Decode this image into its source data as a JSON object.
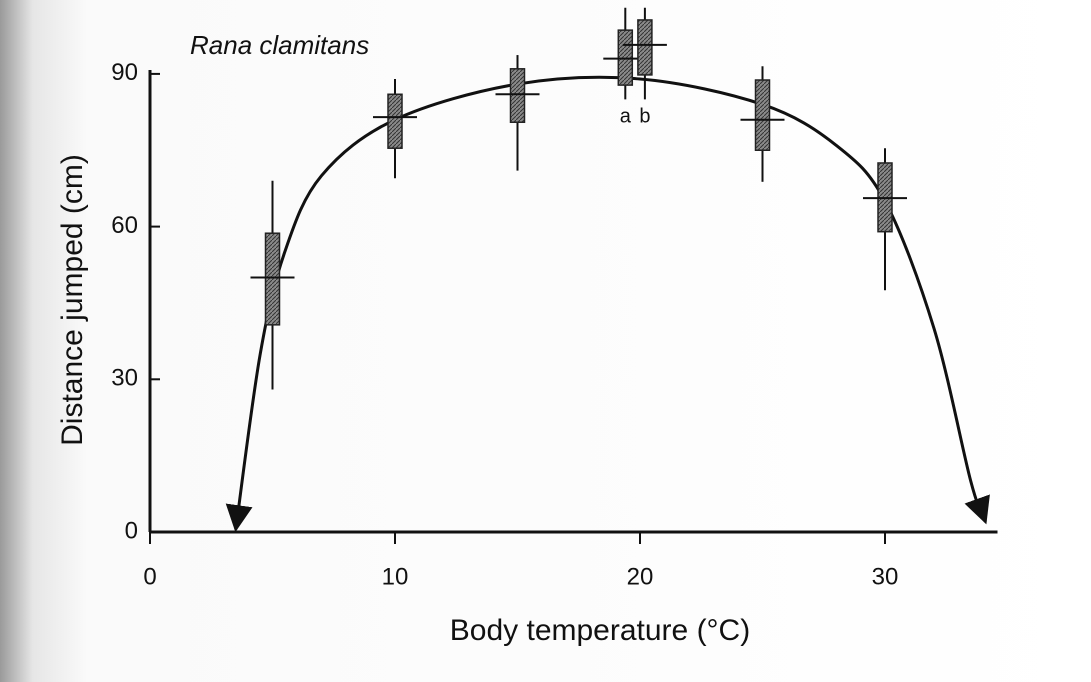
{
  "chart_data": {
    "type": "box",
    "title": "Rana clamitans",
    "xlabel": "Body temperature (°C)",
    "ylabel": "Distance jumped (cm)",
    "xlim": [
      0,
      35
    ],
    "ylim": [
      0,
      104
    ],
    "xticks": [
      0,
      10,
      20,
      30
    ],
    "yticks": [
      0,
      30,
      60,
      90
    ],
    "color": "#8a8a8a",
    "x": [
      5,
      10,
      15,
      19.4,
      20.2,
      25,
      30
    ],
    "mean": [
      50,
      81.5,
      86,
      93,
      95.7,
      81,
      65.6
    ],
    "box_low": [
      40.7,
      75.4,
      80.5,
      87.8,
      89.8,
      75,
      59
    ],
    "box_high": [
      58.7,
      86,
      91,
      98.6,
      100.6,
      88.8,
      72.5
    ],
    "whisker_low": [
      28,
      69.5,
      71,
      85,
      85,
      68.8,
      47.5
    ],
    "whisker_high": [
      69,
      89,
      93.7,
      103,
      103,
      91.5,
      75.4
    ],
    "point_labels": [
      null,
      null,
      null,
      "a",
      "b",
      null,
      null
    ],
    "curve": {
      "x": [
        3.5,
        4.5,
        5.5,
        7,
        10,
        15,
        20,
        25,
        28,
        30,
        32,
        33.5,
        34.1
      ],
      "y": [
        0.5,
        35,
        55,
        70,
        81,
        88,
        89,
        84,
        76,
        65,
        40,
        10,
        2
      ]
    }
  }
}
